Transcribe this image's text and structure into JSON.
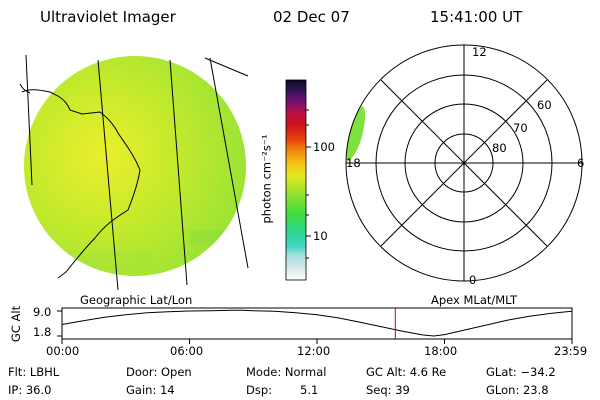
{
  "header": {
    "title": "Ultraviolet Imager",
    "date": "02 Dec 07",
    "time": "15:41:00 UT"
  },
  "colorbar": {
    "label": "photon cm⁻²s⁻¹",
    "ticks": [
      "100",
      "10"
    ]
  },
  "polar_plot": {
    "mlt_labels": [
      "12",
      "6",
      "18",
      "0"
    ],
    "mlat_labels": [
      "60",
      "70",
      "80"
    ]
  },
  "panel_labels": {
    "geographic": "Geographic Lat/Lon",
    "apex": "Apex MLat/MLT"
  },
  "gc_alt_plot": {
    "ylabel": "GC Alt",
    "y_ticks": [
      "9.0",
      "1.8"
    ],
    "x_ticks": [
      "00:00",
      "06:00",
      "12:00",
      "18:00",
      "23:59"
    ]
  },
  "chart_data": {
    "type": "line",
    "title": "",
    "xlabel": "",
    "ylabel": "GC Alt",
    "xlim": [
      0,
      24
    ],
    "ylim": [
      1.8,
      9.0
    ],
    "marker_x": 15.683,
    "series": [
      {
        "x": [
          0,
          1,
          2,
          3,
          4,
          5,
          6,
          7,
          8,
          8.5,
          9,
          10,
          11,
          12,
          13,
          14,
          15,
          16,
          17,
          17.5,
          18,
          19,
          20,
          21,
          22,
          23,
          23.98
        ],
        "values": [
          5.1,
          6.2,
          7.2,
          7.9,
          8.5,
          8.8,
          9.0,
          9.1,
          9.2,
          9.2,
          9.1,
          8.9,
          8.5,
          7.9,
          7.0,
          5.8,
          4.5,
          3.2,
          2.1,
          1.8,
          2.2,
          3.6,
          5.0,
          6.4,
          7.5,
          8.3,
          8.9
        ]
      }
    ]
  },
  "footer": {
    "row1": {
      "filter": "Flt: LBHL",
      "door": "Door: Open",
      "mode": "Mode: Normal",
      "gc_alt": "GC Alt: 4.6 Re",
      "glat": "GLat: −34.2"
    },
    "row2": {
      "ip": "IP: 36.0",
      "gain": "Gain: 14",
      "dsp_label": "Dsp:",
      "dsp_value": "5.1",
      "seq": "Seq: 39",
      "glon": "GLon: 23.8"
    }
  },
  "colors": {
    "map_fill": "#9ee42e",
    "map_center": "#e2ed2a",
    "auroral_spot": "#7fe23c",
    "marker": "#cc0000"
  }
}
